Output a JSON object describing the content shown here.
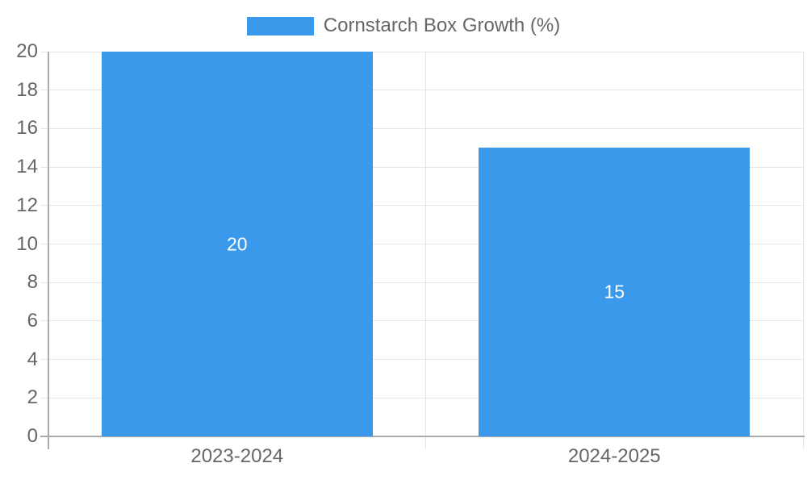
{
  "legend": {
    "label": "Cornstarch Box Growth (%)"
  },
  "chart_data": {
    "type": "bar",
    "title": "Cornstarch Box Growth (%)",
    "categories": [
      "2023-2024",
      "2024-2025"
    ],
    "values": [
      20,
      15
    ],
    "value_labels": [
      "20",
      "15"
    ],
    "xlabel": "",
    "ylabel": "",
    "ylim": [
      0,
      20
    ],
    "ytick_step": 2,
    "yticks": [
      0,
      2,
      4,
      6,
      8,
      10,
      12,
      14,
      16,
      18,
      20
    ],
    "grid": true,
    "legend_position": "top-center",
    "colors": {
      "bar": "#3b99ec",
      "value_label": "#ffffff",
      "axis_text": "#666666",
      "axis_line": "#ababab",
      "gridline": "#e6e6e6",
      "background": "#ffffff"
    }
  }
}
